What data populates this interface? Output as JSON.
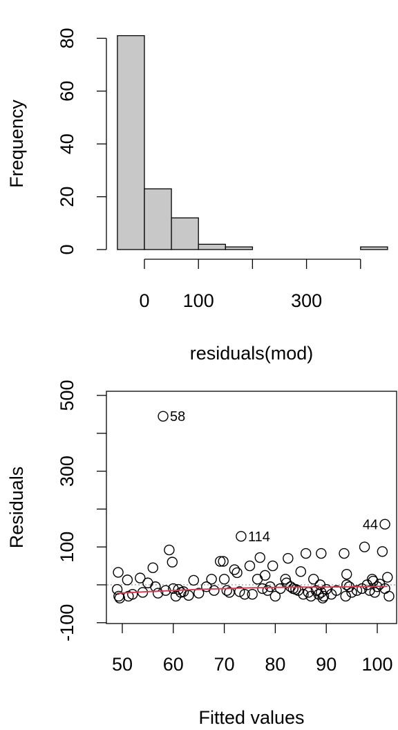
{
  "chart_data": [
    {
      "type": "bar",
      "subtype": "histogram",
      "xlabel": "residuals(mod)",
      "ylabel": "Frequency",
      "bins": [
        {
          "from": -50,
          "to": 0,
          "count": 81
        },
        {
          "from": 0,
          "to": 50,
          "count": 23
        },
        {
          "from": 50,
          "to": 100,
          "count": 12
        },
        {
          "from": 100,
          "to": 150,
          "count": 2
        },
        {
          "from": 150,
          "to": 200,
          "count": 1
        },
        {
          "from": 200,
          "to": 250,
          "count": 0
        },
        {
          "from": 250,
          "to": 300,
          "count": 0
        },
        {
          "from": 300,
          "to": 350,
          "count": 0
        },
        {
          "from": 350,
          "to": 400,
          "count": 0
        },
        {
          "from": 400,
          "to": 450,
          "count": 1
        }
      ],
      "xlim": [
        -50,
        450
      ],
      "ylim": [
        0,
        80
      ],
      "x_ticks": [
        0,
        100,
        200,
        300,
        400
      ],
      "x_tick_labels": [
        "0",
        "100",
        "",
        "300",
        ""
      ],
      "y_ticks": [
        0,
        20,
        40,
        60,
        80
      ],
      "y_tick_labels": [
        "0",
        "20",
        "40",
        "60",
        "80"
      ],
      "bar_color": "#c8c8c8"
    },
    {
      "type": "scatter",
      "xlabel": "Fitted values",
      "ylabel": "Residuals",
      "xlim": [
        48.5,
        103
      ],
      "ylim": [
        -110,
        505
      ],
      "x_ticks": [
        50,
        60,
        70,
        80,
        90,
        100
      ],
      "x_tick_labels": [
        "50",
        "60",
        "70",
        "80",
        "90",
        "100"
      ],
      "y_ticks": [
        -100,
        0,
        100,
        200,
        300,
        400,
        500
      ],
      "y_tick_labels": [
        "-100",
        "",
        "100",
        "",
        "300",
        "",
        "500"
      ],
      "grid": false,
      "points": [
        {
          "x": 58.0,
          "y": 445
        },
        {
          "x": 73.3,
          "y": 128
        },
        {
          "x": 101.5,
          "y": 160
        },
        {
          "x": 49.2,
          "y": 33
        },
        {
          "x": 49.0,
          "y": -12
        },
        {
          "x": 49.3,
          "y": -30
        },
        {
          "x": 49.5,
          "y": -35
        },
        {
          "x": 51.0,
          "y": 13
        },
        {
          "x": 51.2,
          "y": -30
        },
        {
          "x": 52.0,
          "y": -25
        },
        {
          "x": 53.5,
          "y": 18
        },
        {
          "x": 54.0,
          "y": -20
        },
        {
          "x": 55.0,
          "y": 5
        },
        {
          "x": 56.0,
          "y": 45
        },
        {
          "x": 56.5,
          "y": -5
        },
        {
          "x": 57.0,
          "y": -22
        },
        {
          "x": 58.5,
          "y": -15
        },
        {
          "x": 59.2,
          "y": 92
        },
        {
          "x": 59.8,
          "y": 60
        },
        {
          "x": 60.0,
          "y": -10
        },
        {
          "x": 60.5,
          "y": -30
        },
        {
          "x": 61.0,
          "y": -12
        },
        {
          "x": 61.5,
          "y": -20
        },
        {
          "x": 62.0,
          "y": -18
        },
        {
          "x": 63.0,
          "y": -28
        },
        {
          "x": 64.0,
          "y": 12
        },
        {
          "x": 65.0,
          "y": -22
        },
        {
          "x": 66.5,
          "y": -5
        },
        {
          "x": 67.5,
          "y": 15
        },
        {
          "x": 68.0,
          "y": -15
        },
        {
          "x": 69.2,
          "y": 62
        },
        {
          "x": 69.8,
          "y": 62
        },
        {
          "x": 70.0,
          "y": 15
        },
        {
          "x": 70.5,
          "y": -15
        },
        {
          "x": 71.0,
          "y": -20
        },
        {
          "x": 72.0,
          "y": 40
        },
        {
          "x": 72.5,
          "y": 32
        },
        {
          "x": 73.0,
          "y": -18
        },
        {
          "x": 74.0,
          "y": -25
        },
        {
          "x": 75.0,
          "y": 50
        },
        {
          "x": 75.5,
          "y": -25
        },
        {
          "x": 76.5,
          "y": 15
        },
        {
          "x": 77.0,
          "y": 72
        },
        {
          "x": 77.5,
          "y": -10
        },
        {
          "x": 78.0,
          "y": 25
        },
        {
          "x": 78.5,
          "y": -15
        },
        {
          "x": 79.0,
          "y": -5
        },
        {
          "x": 79.5,
          "y": 50
        },
        {
          "x": 80.0,
          "y": -30
        },
        {
          "x": 81.0,
          "y": -10
        },
        {
          "x": 82.0,
          "y": 15
        },
        {
          "x": 82.2,
          "y": 5
        },
        {
          "x": 82.5,
          "y": 70
        },
        {
          "x": 83.0,
          "y": -5
        },
        {
          "x": 83.5,
          "y": -10
        },
        {
          "x": 84.0,
          "y": -12
        },
        {
          "x": 84.5,
          "y": -15
        },
        {
          "x": 85.0,
          "y": 35
        },
        {
          "x": 85.5,
          "y": -25
        },
        {
          "x": 86.0,
          "y": 83
        },
        {
          "x": 86.5,
          "y": -20
        },
        {
          "x": 87.0,
          "y": -30
        },
        {
          "x": 87.5,
          "y": 15
        },
        {
          "x": 88.0,
          "y": -15
        },
        {
          "x": 88.5,
          "y": -25
        },
        {
          "x": 88.8,
          "y": 0
        },
        {
          "x": 89.0,
          "y": -20
        },
        {
          "x": 89.0,
          "y": 83
        },
        {
          "x": 89.3,
          "y": -35
        },
        {
          "x": 89.5,
          "y": -30
        },
        {
          "x": 90.0,
          "y": -12
        },
        {
          "x": 91.0,
          "y": -25
        },
        {
          "x": 92.0,
          "y": -15
        },
        {
          "x": 93.5,
          "y": 83
        },
        {
          "x": 93.8,
          "y": -30
        },
        {
          "x": 94.0,
          "y": 28
        },
        {
          "x": 94.0,
          "y": 0
        },
        {
          "x": 94.5,
          "y": -5
        },
        {
          "x": 95.0,
          "y": -20
        },
        {
          "x": 96.0,
          "y": -15
        },
        {
          "x": 97.0,
          "y": -10
        },
        {
          "x": 97.5,
          "y": 100
        },
        {
          "x": 98.0,
          "y": 0
        },
        {
          "x": 98.5,
          "y": -15
        },
        {
          "x": 99.0,
          "y": 15
        },
        {
          "x": 99.2,
          "y": 10
        },
        {
          "x": 99.5,
          "y": -20
        },
        {
          "x": 100.0,
          "y": -5
        },
        {
          "x": 100.5,
          "y": 2
        },
        {
          "x": 101.0,
          "y": 88
        },
        {
          "x": 101.5,
          "y": -10
        },
        {
          "x": 102.0,
          "y": 20
        },
        {
          "x": 102.3,
          "y": -30
        }
      ],
      "point_labels": [
        {
          "text": "58",
          "x": 58.0,
          "y": 445
        },
        {
          "text": "114",
          "x": 73.3,
          "y": 128
        },
        {
          "text": "44",
          "x": 101.5,
          "y": 160
        }
      ],
      "reference_line": {
        "y": 0,
        "style": "dotted",
        "color": "#a8a8a8"
      },
      "smooth_line": {
        "color": "#d1425a",
        "x": [
          49,
          55,
          60,
          65,
          70,
          75,
          80,
          85,
          90,
          95,
          100,
          102
        ],
        "y": [
          -22,
          -18,
          -15,
          -12,
          -10,
          -8,
          -7,
          -6,
          -6,
          -5,
          -4,
          -4
        ]
      }
    }
  ]
}
